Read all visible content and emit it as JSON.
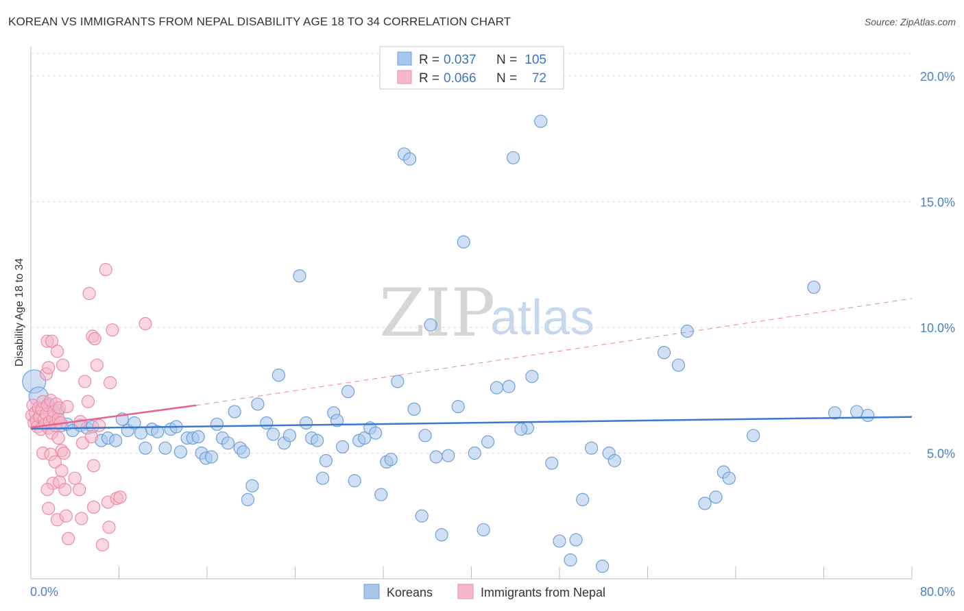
{
  "title": "KOREAN VS IMMIGRANTS FROM NEPAL DISABILITY AGE 18 TO 34 CORRELATION CHART",
  "source": "Source: ZipAtlas.com",
  "watermark": {
    "zip": "ZIP",
    "atlas": "atlas"
  },
  "colors": {
    "blue_fill": "#a8c6ec",
    "blue_stroke": "#6f9fd8",
    "blue_line": "#3a78d0",
    "pink_fill": "#f6b7c9",
    "pink_stroke": "#ec8aa8",
    "pink_line": "#e8628d",
    "tick": "#4a80c8",
    "grid": "#dddddd"
  },
  "legend": {
    "rows": [
      {
        "r_label": "R = ",
        "r_value": "0.037",
        "n_label": "N = ",
        "n_value": "105"
      },
      {
        "r_label": "R = ",
        "r_value": "0.066",
        "n_label": "N = ",
        "n_value": "72"
      }
    ]
  },
  "chart_data": {
    "type": "scatter",
    "title": "KOREAN VS IMMIGRANTS FROM NEPAL DISABILITY AGE 18 TO 34 CORRELATION CHART",
    "xlabel": "",
    "ylabel": "Disability Age 18 to 34",
    "xlim": [
      0,
      80
    ],
    "ylim": [
      0,
      20.9
    ],
    "x_tick_labels": [
      "0.0%",
      "80.0%"
    ],
    "y_ticks": [
      5,
      10,
      15,
      20
    ],
    "y_tick_labels": [
      "5.0%",
      "10.0%",
      "15.0%",
      "20.0%"
    ],
    "grid": true,
    "legend_position": "top-center",
    "series": [
      {
        "name": "Koreans",
        "color": "blue",
        "trend": {
          "x0": 0,
          "y0": 5.97,
          "x1": 80,
          "y1": 6.44,
          "style": "solid"
        },
        "points": [
          [
            0.3,
            7.85
          ],
          [
            0.7,
            7.25
          ],
          [
            1.6,
            6.95
          ],
          [
            2.5,
            6.7
          ],
          [
            2.8,
            6.1
          ],
          [
            3.3,
            6.15
          ],
          [
            3.8,
            5.9
          ],
          [
            4.5,
            6.1
          ],
          [
            5.1,
            6.0
          ],
          [
            5.6,
            6.05
          ],
          [
            6.4,
            5.5
          ],
          [
            7.0,
            5.6
          ],
          [
            7.7,
            5.5
          ],
          [
            8.3,
            6.35
          ],
          [
            8.8,
            5.9
          ],
          [
            9.4,
            6.2
          ],
          [
            10.0,
            5.8
          ],
          [
            10.4,
            5.2
          ],
          [
            11.0,
            5.95
          ],
          [
            11.5,
            5.85
          ],
          [
            12.2,
            5.2
          ],
          [
            12.7,
            5.95
          ],
          [
            13.2,
            6.05
          ],
          [
            13.6,
            5.05
          ],
          [
            14.2,
            5.6
          ],
          [
            14.7,
            5.6
          ],
          [
            15.2,
            5.65
          ],
          [
            15.5,
            5.0
          ],
          [
            15.9,
            4.8
          ],
          [
            16.4,
            4.85
          ],
          [
            16.9,
            6.15
          ],
          [
            17.4,
            5.6
          ],
          [
            17.9,
            5.4
          ],
          [
            18.5,
            6.65
          ],
          [
            19.0,
            5.2
          ],
          [
            19.3,
            5.05
          ],
          [
            19.7,
            3.15
          ],
          [
            20.1,
            3.7
          ],
          [
            20.6,
            6.95
          ],
          [
            21.4,
            6.2
          ],
          [
            22.0,
            5.75
          ],
          [
            22.5,
            8.1
          ],
          [
            23.0,
            5.4
          ],
          [
            23.5,
            5.7
          ],
          [
            24.4,
            12.05
          ],
          [
            25.0,
            6.2
          ],
          [
            25.5,
            5.6
          ],
          [
            26.0,
            5.5
          ],
          [
            26.5,
            4.0
          ],
          [
            26.8,
            4.7
          ],
          [
            27.5,
            6.6
          ],
          [
            27.8,
            6.3
          ],
          [
            28.3,
            5.25
          ],
          [
            28.8,
            7.45
          ],
          [
            29.4,
            3.9
          ],
          [
            29.8,
            5.5
          ],
          [
            30.3,
            5.6
          ],
          [
            30.8,
            6.0
          ],
          [
            31.3,
            5.8
          ],
          [
            31.8,
            3.35
          ],
          [
            32.3,
            4.65
          ],
          [
            32.7,
            4.75
          ],
          [
            33.3,
            7.85
          ],
          [
            33.9,
            16.9
          ],
          [
            34.4,
            16.7
          ],
          [
            34.8,
            6.75
          ],
          [
            35.5,
            2.5
          ],
          [
            35.8,
            5.7
          ],
          [
            36.3,
            10.1
          ],
          [
            36.8,
            4.85
          ],
          [
            37.3,
            1.75
          ],
          [
            37.9,
            4.9
          ],
          [
            38.8,
            6.85
          ],
          [
            39.3,
            13.4
          ],
          [
            40.3,
            5.0
          ],
          [
            41.1,
            1.95
          ],
          [
            41.5,
            5.45
          ],
          [
            42.3,
            7.6
          ],
          [
            43.4,
            7.65
          ],
          [
            43.8,
            16.75
          ],
          [
            45.1,
            6.0
          ],
          [
            45.5,
            8.05
          ],
          [
            46.3,
            18.2
          ],
          [
            47.3,
            4.6
          ],
          [
            48.0,
            1.5
          ],
          [
            49.0,
            0.75
          ],
          [
            49.5,
            1.55
          ],
          [
            50.1,
            3.15
          ],
          [
            50.9,
            5.2
          ],
          [
            51.9,
            0.5
          ],
          [
            52.5,
            5.0
          ],
          [
            53.0,
            4.7
          ],
          [
            57.5,
            9.0
          ],
          [
            58.8,
            8.5
          ],
          [
            59.6,
            9.85
          ],
          [
            61.2,
            3.0
          ],
          [
            62.2,
            3.25
          ],
          [
            62.9,
            4.25
          ],
          [
            63.4,
            4.0
          ],
          [
            65.6,
            5.7
          ],
          [
            71.1,
            11.6
          ],
          [
            73.0,
            6.6
          ],
          [
            75.0,
            6.65
          ],
          [
            76.0,
            6.5
          ],
          [
            44.5,
            5.95
          ]
        ]
      },
      {
        "name": "Immigrants from Nepal",
        "color": "pink",
        "trend": {
          "x0": 0,
          "y0": 6.02,
          "x1": 15,
          "y1": 6.9,
          "style": "solid",
          "dashed_extension_to": [
            80,
            11.15
          ]
        },
        "points": [
          [
            0.1,
            6.5
          ],
          [
            0.2,
            6.9
          ],
          [
            0.3,
            6.2
          ],
          [
            0.4,
            6.6
          ],
          [
            0.5,
            6.3
          ],
          [
            0.6,
            6.05
          ],
          [
            0.7,
            6.8
          ],
          [
            0.8,
            6.45
          ],
          [
            0.9,
            5.95
          ],
          [
            1.0,
            6.75
          ],
          [
            1.1,
            7.05
          ],
          [
            1.2,
            6.35
          ],
          [
            1.3,
            6.15
          ],
          [
            1.4,
            6.55
          ],
          [
            1.5,
            6.9
          ],
          [
            1.6,
            6.0
          ],
          [
            1.7,
            6.25
          ],
          [
            1.8,
            7.1
          ],
          [
            1.9,
            5.8
          ],
          [
            2.0,
            6.4
          ],
          [
            2.1,
            6.65
          ],
          [
            2.2,
            6.1
          ],
          [
            2.3,
            6.95
          ],
          [
            2.5,
            6.35
          ],
          [
            2.6,
            6.8
          ],
          [
            2.7,
            6.2
          ],
          [
            1.4,
            8.15
          ],
          [
            1.6,
            8.4
          ],
          [
            1.5,
            9.45
          ],
          [
            1.9,
            9.45
          ],
          [
            2.4,
            9.05
          ],
          [
            2.9,
            8.5
          ],
          [
            3.3,
            6.85
          ],
          [
            2.5,
            5.6
          ],
          [
            2.8,
            5.1
          ],
          [
            3.0,
            5.0
          ],
          [
            1.1,
            5.0
          ],
          [
            1.8,
            4.95
          ],
          [
            2.2,
            4.65
          ],
          [
            2.8,
            4.3
          ],
          [
            2.0,
            3.8
          ],
          [
            2.6,
            3.85
          ],
          [
            1.5,
            3.55
          ],
          [
            3.1,
            3.55
          ],
          [
            1.6,
            2.8
          ],
          [
            2.4,
            2.35
          ],
          [
            3.4,
            1.6
          ],
          [
            4.5,
            6.25
          ],
          [
            4.7,
            5.4
          ],
          [
            4.9,
            7.85
          ],
          [
            5.2,
            7.05
          ],
          [
            5.5,
            5.65
          ],
          [
            4.4,
            3.55
          ],
          [
            4.6,
            2.4
          ],
          [
            5.3,
            11.35
          ],
          [
            5.6,
            9.65
          ],
          [
            5.8,
            9.55
          ],
          [
            5.7,
            4.5
          ],
          [
            5.7,
            2.85
          ],
          [
            6.0,
            8.5
          ],
          [
            6.2,
            6.1
          ],
          [
            6.5,
            1.35
          ],
          [
            6.8,
            12.3
          ],
          [
            7.0,
            3.05
          ],
          [
            7.1,
            2.05
          ],
          [
            7.2,
            7.8
          ],
          [
            7.4,
            9.9
          ],
          [
            7.8,
            3.2
          ],
          [
            8.1,
            3.25
          ],
          [
            10.4,
            10.15
          ],
          [
            3.2,
            2.5
          ],
          [
            4.0,
            4.0
          ]
        ]
      }
    ]
  },
  "bottom_legend": [
    "Koreans",
    "Immigrants from Nepal"
  ]
}
